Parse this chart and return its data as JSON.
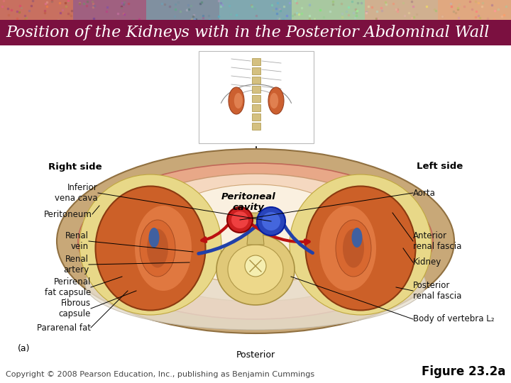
{
  "title": "Position of the Kidneys with in the Posterior Abdominal Wall",
  "title_bg_color": "#7B1040",
  "title_text_color": "#FFFFFF",
  "title_fontsize": 16,
  "copyright_text": "Copyright © 2008 Pearson Education, Inc., publishing as Benjamin Cummings",
  "figure_label": "Figure 23.2a",
  "copyright_fontsize": 8,
  "figure_label_fontsize": 12,
  "bg_color": "#FFFFFF",
  "label_fontsize": 8.5,
  "label_color": "#111111"
}
